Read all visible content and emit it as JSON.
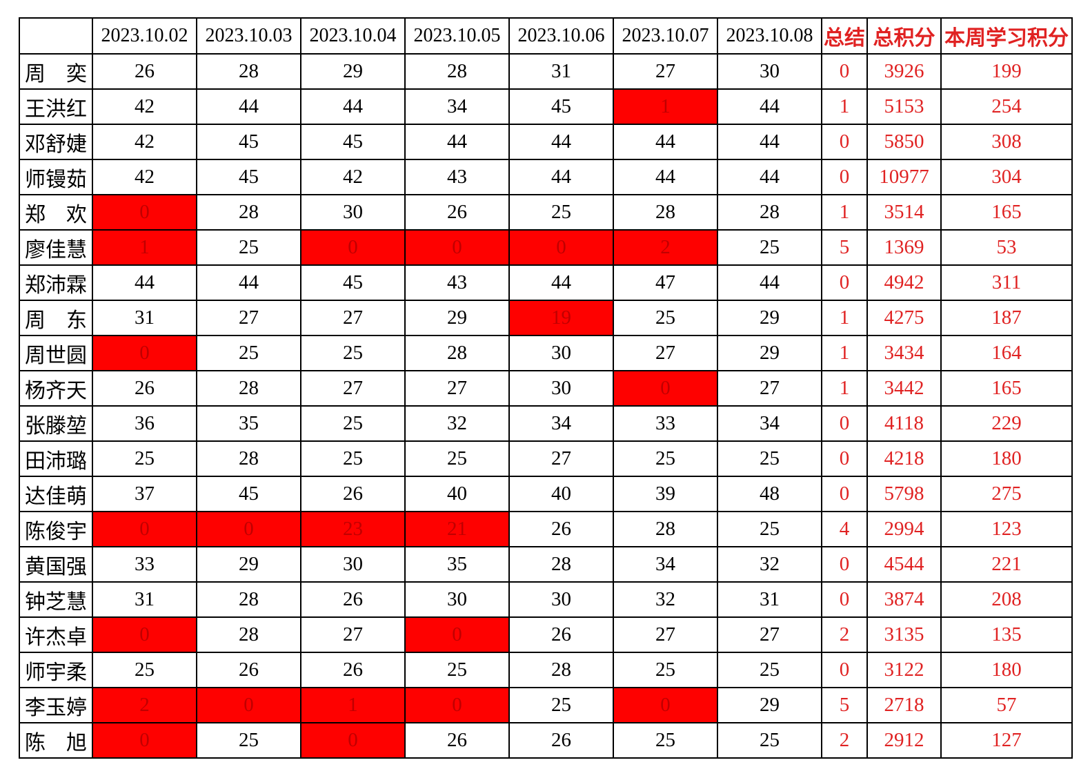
{
  "colors": {
    "accent_red": "#e02222",
    "highlight_bg": "#fe0100",
    "highlight_text": "#c00000",
    "grid_line": "#000000"
  },
  "chart_data": {
    "type": "table",
    "title": "",
    "columns": [
      {
        "label": "",
        "kind": "name"
      },
      {
        "label": "2023.10.02",
        "kind": "date"
      },
      {
        "label": "2023.10.03",
        "kind": "date"
      },
      {
        "label": "2023.10.04",
        "kind": "date"
      },
      {
        "label": "2023.10.05",
        "kind": "date"
      },
      {
        "label": "2023.10.06",
        "kind": "date"
      },
      {
        "label": "2023.10.07",
        "kind": "date"
      },
      {
        "label": "2023.10.08",
        "kind": "date"
      },
      {
        "label": "总结",
        "kind": "summary"
      },
      {
        "label": "总积分",
        "kind": "total"
      },
      {
        "label": "本周学习积分",
        "kind": "week"
      }
    ],
    "rows": [
      {
        "name": "周　奕",
        "days": [
          {
            "v": "26"
          },
          {
            "v": "28"
          },
          {
            "v": "29"
          },
          {
            "v": "28"
          },
          {
            "v": "31"
          },
          {
            "v": "27"
          },
          {
            "v": "30"
          }
        ],
        "summary": "0",
        "total": "3926",
        "week": "199"
      },
      {
        "name": "王洪红",
        "days": [
          {
            "v": "42"
          },
          {
            "v": "44"
          },
          {
            "v": "44"
          },
          {
            "v": "34"
          },
          {
            "v": "45"
          },
          {
            "v": "1",
            "red": true
          },
          {
            "v": "44"
          }
        ],
        "summary": "1",
        "total": "5153",
        "week": "254"
      },
      {
        "name": "邓舒婕",
        "days": [
          {
            "v": "42"
          },
          {
            "v": "45"
          },
          {
            "v": "45"
          },
          {
            "v": "44"
          },
          {
            "v": "44"
          },
          {
            "v": "44"
          },
          {
            "v": "44"
          }
        ],
        "summary": "0",
        "total": "5850",
        "week": "308"
      },
      {
        "name": "师镘茹",
        "days": [
          {
            "v": "42"
          },
          {
            "v": "45"
          },
          {
            "v": "42"
          },
          {
            "v": "43"
          },
          {
            "v": "44"
          },
          {
            "v": "44"
          },
          {
            "v": "44"
          }
        ],
        "summary": "0",
        "total": "10977",
        "week": "304"
      },
      {
        "name": "郑　欢",
        "days": [
          {
            "v": "0",
            "red": true
          },
          {
            "v": "28"
          },
          {
            "v": "30"
          },
          {
            "v": "26"
          },
          {
            "v": "25"
          },
          {
            "v": "28"
          },
          {
            "v": "28"
          }
        ],
        "summary": "1",
        "total": "3514",
        "week": "165"
      },
      {
        "name": "廖佳慧",
        "days": [
          {
            "v": "1",
            "red": true
          },
          {
            "v": "25"
          },
          {
            "v": "0",
            "red": true
          },
          {
            "v": "0",
            "red": true
          },
          {
            "v": "0",
            "red": true
          },
          {
            "v": "2",
            "red": true
          },
          {
            "v": "25"
          }
        ],
        "summary": "5",
        "total": "1369",
        "week": "53"
      },
      {
        "name": "郑沛霖",
        "days": [
          {
            "v": "44"
          },
          {
            "v": "44"
          },
          {
            "v": "45"
          },
          {
            "v": "43"
          },
          {
            "v": "44"
          },
          {
            "v": "47"
          },
          {
            "v": "44"
          }
        ],
        "summary": "0",
        "total": "4942",
        "week": "311"
      },
      {
        "name": "周　东",
        "days": [
          {
            "v": "31"
          },
          {
            "v": "27"
          },
          {
            "v": "27"
          },
          {
            "v": "29"
          },
          {
            "v": "19",
            "red": true
          },
          {
            "v": "25"
          },
          {
            "v": "29"
          }
        ],
        "summary": "1",
        "total": "4275",
        "week": "187"
      },
      {
        "name": "周世圆",
        "days": [
          {
            "v": "0",
            "red": true
          },
          {
            "v": "25"
          },
          {
            "v": "25"
          },
          {
            "v": "28"
          },
          {
            "v": "30"
          },
          {
            "v": "27"
          },
          {
            "v": "29"
          }
        ],
        "summary": "1",
        "total": "3434",
        "week": "164"
      },
      {
        "name": "杨齐天",
        "days": [
          {
            "v": "26"
          },
          {
            "v": "28"
          },
          {
            "v": "27"
          },
          {
            "v": "27"
          },
          {
            "v": "30"
          },
          {
            "v": "0",
            "red": true
          },
          {
            "v": "27"
          }
        ],
        "summary": "1",
        "total": "3442",
        "week": "165"
      },
      {
        "name": "张滕堃",
        "days": [
          {
            "v": "36"
          },
          {
            "v": "35"
          },
          {
            "v": "25"
          },
          {
            "v": "32"
          },
          {
            "v": "34"
          },
          {
            "v": "33"
          },
          {
            "v": "34"
          }
        ],
        "summary": "0",
        "total": "4118",
        "week": "229"
      },
      {
        "name": "田沛璐",
        "days": [
          {
            "v": "25"
          },
          {
            "v": "28"
          },
          {
            "v": "25"
          },
          {
            "v": "25"
          },
          {
            "v": "27"
          },
          {
            "v": "25"
          },
          {
            "v": "25"
          }
        ],
        "summary": "0",
        "total": "4218",
        "week": "180"
      },
      {
        "name": "达佳萌",
        "days": [
          {
            "v": "37"
          },
          {
            "v": "45"
          },
          {
            "v": "26"
          },
          {
            "v": "40"
          },
          {
            "v": "40"
          },
          {
            "v": "39"
          },
          {
            "v": "48"
          }
        ],
        "summary": "0",
        "total": "5798",
        "week": "275"
      },
      {
        "name": "陈俊宇",
        "days": [
          {
            "v": "0",
            "red": true
          },
          {
            "v": "0",
            "red": true
          },
          {
            "v": "23",
            "red": true
          },
          {
            "v": "21",
            "red": true
          },
          {
            "v": "26"
          },
          {
            "v": "28"
          },
          {
            "v": "25"
          }
        ],
        "summary": "4",
        "total": "2994",
        "week": "123"
      },
      {
        "name": "黄国强",
        "days": [
          {
            "v": "33"
          },
          {
            "v": "29"
          },
          {
            "v": "30"
          },
          {
            "v": "35"
          },
          {
            "v": "28"
          },
          {
            "v": "34"
          },
          {
            "v": "32"
          }
        ],
        "summary": "0",
        "total": "4544",
        "week": "221"
      },
      {
        "name": "钟芝慧",
        "days": [
          {
            "v": "31"
          },
          {
            "v": "28"
          },
          {
            "v": "26"
          },
          {
            "v": "30"
          },
          {
            "v": "30"
          },
          {
            "v": "32"
          },
          {
            "v": "31"
          }
        ],
        "summary": "0",
        "total": "3874",
        "week": "208"
      },
      {
        "name": "许杰卓",
        "days": [
          {
            "v": "0",
            "red": true
          },
          {
            "v": "28"
          },
          {
            "v": "27"
          },
          {
            "v": "0",
            "red": true
          },
          {
            "v": "26"
          },
          {
            "v": "27"
          },
          {
            "v": "27"
          }
        ],
        "summary": "2",
        "total": "3135",
        "week": "135"
      },
      {
        "name": "师宇柔",
        "days": [
          {
            "v": "25"
          },
          {
            "v": "26"
          },
          {
            "v": "26"
          },
          {
            "v": "25"
          },
          {
            "v": "28"
          },
          {
            "v": "25"
          },
          {
            "v": "25"
          }
        ],
        "summary": "0",
        "total": "3122",
        "week": "180"
      },
      {
        "name": "李玉婷",
        "days": [
          {
            "v": "2",
            "red": true
          },
          {
            "v": "0",
            "red": true
          },
          {
            "v": "1",
            "red": true
          },
          {
            "v": "0",
            "red": true
          },
          {
            "v": "25"
          },
          {
            "v": "0",
            "red": true
          },
          {
            "v": "29"
          }
        ],
        "summary": "5",
        "total": "2718",
        "week": "57"
      },
      {
        "name": "陈　旭",
        "days": [
          {
            "v": "0",
            "red": true
          },
          {
            "v": "25"
          },
          {
            "v": "0",
            "red": true
          },
          {
            "v": "26"
          },
          {
            "v": "26"
          },
          {
            "v": "25"
          },
          {
            "v": "25"
          }
        ],
        "summary": "2",
        "total": "2912",
        "week": "127"
      }
    ]
  }
}
